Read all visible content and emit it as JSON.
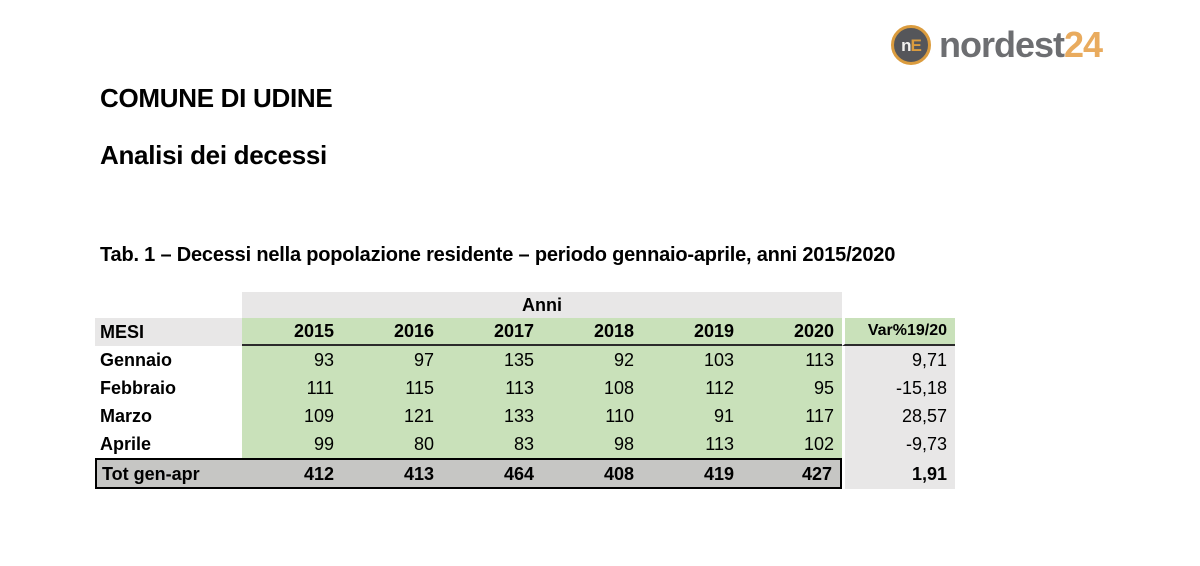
{
  "logo": {
    "icon_n": "n",
    "icon_e": "E",
    "word_main": "nordest",
    "word_accent": "24"
  },
  "header": {
    "title": "COMUNE DI UDINE",
    "subtitle": "Analisi dei decessi"
  },
  "table": {
    "caption": "Tab. 1 – Decessi nella popolazione residente – periodo gennaio-aprile, anni 2015/2020",
    "group_header": "Anni",
    "col_month": "MESI",
    "years": [
      "2015",
      "2016",
      "2017",
      "2018",
      "2019",
      "2020"
    ],
    "var_header": "Var%19/20",
    "rows": [
      {
        "label": "Gennaio",
        "values": [
          "93",
          "97",
          "135",
          "92",
          "103",
          "113"
        ],
        "var": "9,71"
      },
      {
        "label": "Febbraio",
        "values": [
          "111",
          "115",
          "113",
          "108",
          "112",
          "95"
        ],
        "var": "-15,18"
      },
      {
        "label": "Marzo",
        "values": [
          "109",
          "121",
          "133",
          "110",
          "91",
          "117"
        ],
        "var": "28,57"
      },
      {
        "label": "Aprile",
        "values": [
          "99",
          "80",
          "83",
          "98",
          "113",
          "102"
        ],
        "var": "-9,73"
      }
    ],
    "total": {
      "label": "Tot gen-apr",
      "values": [
        "412",
        "413",
        "464",
        "408",
        "419",
        "427"
      ],
      "var": "1,91"
    }
  },
  "colors": {
    "cell_green": "#c9e1ba",
    "cell_light_gray": "#e8e7e7",
    "total_gray": "#c6c6c4",
    "logo_gray": "#6d6e71",
    "logo_orange": "#e9ab5e",
    "badge_ring_orange": "#db9c3e",
    "badge_fill": "#55565a"
  }
}
